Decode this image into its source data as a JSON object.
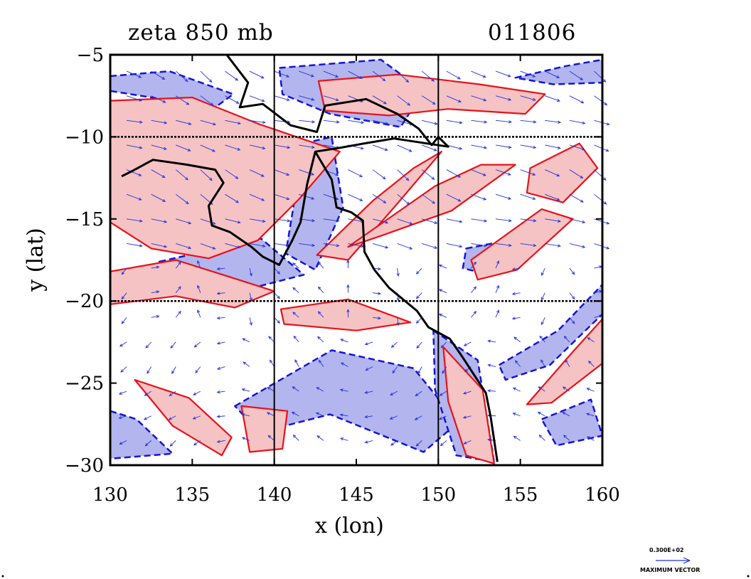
{
  "chart_data": {
    "type": "contour",
    "title_left": "zeta 850 mb",
    "title_right": "011806",
    "xlabel": "x (lon)",
    "ylabel": "y (lat)",
    "xlim": [
      130,
      160
    ],
    "ylim": [
      -30,
      -5
    ],
    "xticks": [
      "130",
      "135",
      "140",
      "145",
      "150",
      "155",
      "160"
    ],
    "yticks": [
      "−5",
      "−10",
      "−15",
      "−20",
      "−25",
      "−30"
    ],
    "gridlines_x": [
      140,
      150
    ],
    "gridlines_y": [
      -10,
      -20
    ],
    "coastline": [
      [
        137.1,
        -5
      ],
      [
        138.4,
        -6.7
      ],
      [
        137.9,
        -8.2
      ],
      [
        139.3,
        -8.0
      ],
      [
        141.0,
        -9.3
      ],
      [
        142.6,
        -9.7
      ],
      [
        143.1,
        -8.1
      ],
      [
        145.6,
        -7.7
      ],
      [
        147.5,
        -8.6
      ],
      [
        148.8,
        -9.5
      ],
      [
        149.6,
        -10.5
      ],
      [
        150.0,
        -10.0
      ],
      [
        150.6,
        -10.6
      ],
      [
        147.3,
        -10.1
      ],
      [
        145.5,
        -10.4
      ],
      [
        143.8,
        -10.7
      ],
      [
        142.5,
        -10.9
      ],
      [
        142.0,
        -12.9
      ],
      [
        141.6,
        -15.2
      ],
      [
        141.1,
        -16.3
      ],
      [
        140.3,
        -17.8
      ],
      [
        139.3,
        -17.3
      ],
      [
        138.6,
        -16.7
      ],
      [
        137.3,
        -15.8
      ],
      [
        136.2,
        -15.4
      ],
      [
        136.0,
        -14.2
      ],
      [
        136.9,
        -12.8
      ],
      [
        136.4,
        -12.0
      ],
      [
        134.7,
        -11.7
      ],
      [
        132.6,
        -11.4
      ],
      [
        131.3,
        -12.1
      ],
      [
        130.7,
        -12.4
      ]
    ],
    "coastline_east": [
      [
        142.5,
        -10.9
      ],
      [
        143.5,
        -12.6
      ],
      [
        143.8,
        -14.3
      ],
      [
        144.7,
        -14.6
      ],
      [
        145.4,
        -15.1
      ],
      [
        145.5,
        -17.0
      ],
      [
        146.1,
        -18.1
      ],
      [
        147.0,
        -19.2
      ],
      [
        148.7,
        -20.6
      ],
      [
        149.4,
        -21.6
      ],
      [
        150.7,
        -22.3
      ],
      [
        151.4,
        -23.3
      ],
      [
        152.9,
        -25.6
      ],
      [
        153.2,
        -27.1
      ],
      [
        153.6,
        -29.8
      ]
    ],
    "contours": {
      "positive": [
        {
          "shape": [
            [
              130,
              -7.8
            ],
            [
              135,
              -7.6
            ],
            [
              139,
              -9.2
            ],
            [
              144,
              -10.9
            ],
            [
              141.5,
              -13.8
            ],
            [
              139,
              -16.3
            ],
            [
              136,
              -17.4
            ],
            [
              132.5,
              -16.8
            ],
            [
              130,
              -15.2
            ]
          ]
        },
        {
          "shape": [
            [
              130,
              -18.2
            ],
            [
              134,
              -17.5
            ],
            [
              137.5,
              -18.6
            ],
            [
              140,
              -19.4
            ],
            [
              137.6,
              -20.4
            ],
            [
              134,
              -19.7
            ],
            [
              130,
              -20.2
            ]
          ]
        },
        {
          "shape": [
            [
              142.6,
              -17.2
            ],
            [
              146,
              -13.9
            ],
            [
              148.5,
              -11.9
            ],
            [
              150.2,
              -10.9
            ],
            [
              147.3,
              -14.3
            ],
            [
              144.5,
              -17.5
            ]
          ]
        },
        {
          "shape": [
            [
              144.5,
              -16.7
            ],
            [
              149.8,
              -13.0
            ],
            [
              152.6,
              -11.7
            ],
            [
              154.7,
              -11.7
            ],
            [
              150.8,
              -14.5
            ],
            [
              146.3,
              -16.1
            ]
          ]
        },
        {
          "shape": [
            [
              142.7,
              -6.6
            ],
            [
              147.5,
              -6.2
            ],
            [
              152.5,
              -6.8
            ],
            [
              156.5,
              -7.4
            ],
            [
              155.3,
              -8.6
            ],
            [
              150.6,
              -8.3
            ],
            [
              147,
              -8.7
            ],
            [
              143.1,
              -8.4
            ]
          ]
        },
        {
          "shape": [
            [
              155.6,
              -11.9
            ],
            [
              158.6,
              -10.4
            ],
            [
              159.7,
              -11.9
            ],
            [
              157.6,
              -14.0
            ],
            [
              155.4,
              -13.4
            ]
          ]
        },
        {
          "shape": [
            [
              152,
              -17.5
            ],
            [
              156.3,
              -14.4
            ],
            [
              158.2,
              -15.0
            ],
            [
              154.8,
              -18.1
            ],
            [
              152.4,
              -18.7
            ]
          ]
        },
        {
          "shape": [
            [
              140.4,
              -20.5
            ],
            [
              144.5,
              -19.9
            ],
            [
              148.3,
              -21.3
            ],
            [
              145,
              -21.8
            ],
            [
              140.6,
              -21.4
            ]
          ]
        },
        {
          "shape": [
            [
              155.4,
              -26.3
            ],
            [
              158.1,
              -23.2
            ],
            [
              160,
              -21.1
            ],
            [
              160,
              -23.8
            ],
            [
              156.9,
              -26.2
            ]
          ]
        },
        {
          "shape": [
            [
              131.5,
              -24.8
            ],
            [
              134.8,
              -25.9
            ],
            [
              137.4,
              -28.3
            ],
            [
              136.8,
              -29.4
            ],
            [
              133.8,
              -27.6
            ]
          ]
        },
        {
          "shape": [
            [
              138,
              -26.4
            ],
            [
              140.8,
              -26.7
            ],
            [
              140.5,
              -29.0
            ],
            [
              138.5,
              -29.2
            ]
          ]
        },
        {
          "shape": [
            [
              150.3,
              -22.8
            ],
            [
              152.7,
              -25.4
            ],
            [
              153.4,
              -29.9
            ],
            [
              151.7,
              -29.4
            ],
            [
              150.6,
              -26.1
            ]
          ]
        }
      ],
      "negative": [
        {
          "shape": [
            [
              130,
              -6.3
            ],
            [
              133.6,
              -6.0
            ],
            [
              137.5,
              -7.4
            ],
            [
              136.4,
              -8.2
            ],
            [
              132.5,
              -7.6
            ],
            [
              130,
              -7.2
            ]
          ]
        },
        {
          "shape": [
            [
              140.3,
              -5.8
            ],
            [
              146.5,
              -5.3
            ],
            [
              149.1,
              -7.2
            ],
            [
              147.7,
              -9.4
            ],
            [
              143.4,
              -8.6
            ],
            [
              140.5,
              -7.4
            ]
          ]
        },
        {
          "shape": [
            [
              141.8,
              -10.4
            ],
            [
              143.5,
              -10.0
            ],
            [
              144.2,
              -14.3
            ],
            [
              142.5,
              -18.1
            ],
            [
              140.7,
              -17.1
            ]
          ]
        },
        {
          "shape": [
            [
              133,
              -17.6
            ],
            [
              139.2,
              -16.2
            ],
            [
              141.8,
              -18.4
            ],
            [
              137.5,
              -19.5
            ],
            [
              133.6,
              -19.1
            ]
          ]
        },
        {
          "shape": [
            [
              137.6,
              -26.4
            ],
            [
              143.5,
              -23.0
            ],
            [
              148.5,
              -24.1
            ],
            [
              151.2,
              -27.4
            ],
            [
              149.1,
              -29.2
            ],
            [
              143.4,
              -26.9
            ],
            [
              139.1,
              -28.0
            ]
          ]
        },
        {
          "shape": [
            [
              149.7,
              -21.8
            ],
            [
              152.4,
              -23.6
            ],
            [
              153.4,
              -29.8
            ],
            [
              151.1,
              -29.4
            ],
            [
              149.8,
              -25.4
            ]
          ]
        },
        {
          "shape": [
            [
              153.7,
              -23.9
            ],
            [
              157.3,
              -21.8
            ],
            [
              160,
              -19.0
            ],
            [
              160,
              -20.8
            ],
            [
              156.8,
              -23.9
            ],
            [
              154.1,
              -24.8
            ]
          ]
        },
        {
          "shape": [
            [
              151.7,
              -16.8
            ],
            [
              154.3,
              -16.3
            ],
            [
              153.1,
              -18.4
            ],
            [
              151.5,
              -18.0
            ]
          ]
        },
        {
          "shape": [
            [
              130,
              -26.7
            ],
            [
              131.6,
              -27.2
            ],
            [
              133.8,
              -29.3
            ],
            [
              130,
              -29.6
            ]
          ]
        },
        {
          "shape": [
            [
              156.3,
              -27.2
            ],
            [
              159.3,
              -26.0
            ],
            [
              160,
              -28.2
            ],
            [
              157.2,
              -28.8
            ]
          ]
        },
        {
          "shape": [
            [
              154.7,
              -6.4
            ],
            [
              157.7,
              -5.7
            ],
            [
              160,
              -5.3
            ],
            [
              160,
              -6.7
            ],
            [
              157,
              -6.8
            ]
          ]
        }
      ]
    },
    "wind_vectors": "850 mb wind vectors",
    "colors": {
      "positive_fill": "#f5c3c4",
      "positive_line": "#e8121a",
      "negative_fill": "#b3b5ee",
      "negative_line": "#1414d8",
      "vector": "#2233dd",
      "coast": "#000000"
    }
  },
  "legend": {
    "value": "0.300E+02",
    "caption": "MAXIMUM VECTOR"
  }
}
